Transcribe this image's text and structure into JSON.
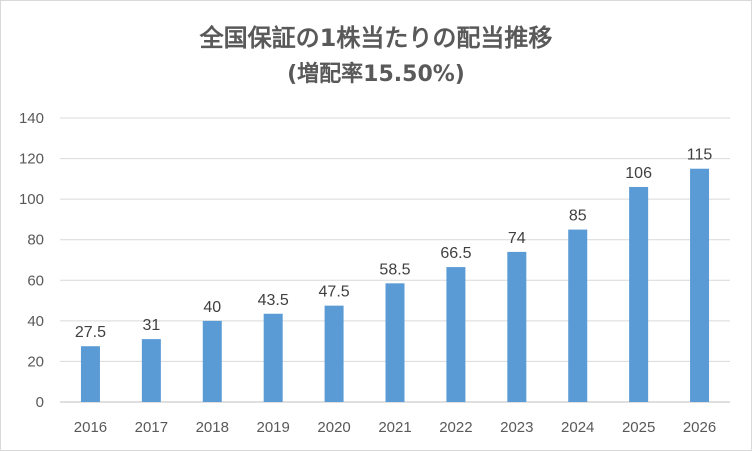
{
  "chart_data": {
    "type": "bar",
    "title": "全国保証の1株当たりの配当推移",
    "subtitle": "(増配率15.50%)",
    "xlabel": "",
    "ylabel": "",
    "categories": [
      "2016",
      "2017",
      "2018",
      "2019",
      "2020",
      "2021",
      "2022",
      "2023",
      "2024",
      "2025",
      "2026"
    ],
    "values": [
      27.5,
      31,
      40,
      43.5,
      47.5,
      58.5,
      66.5,
      74,
      85,
      106,
      115
    ],
    "data_labels": [
      "27.5",
      "31",
      "40",
      "43.5",
      "47.5",
      "58.5",
      "66.5",
      "74",
      "85",
      "106",
      "115"
    ],
    "y_ticks": [
      "0",
      "20",
      "40",
      "60",
      "80",
      "100",
      "120",
      "140"
    ],
    "ylim": [
      0,
      140
    ],
    "grid": true,
    "legend": "none",
    "bar_color": "#5b9bd5"
  }
}
